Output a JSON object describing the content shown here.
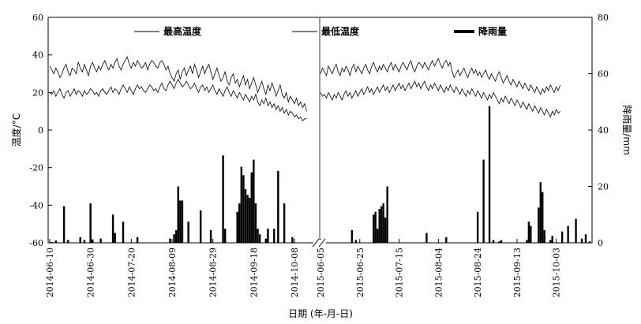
{
  "chart_data": {
    "type": "line",
    "xlabel": "日期 (年-月-日)",
    "ylabel": "温度/°C",
    "y2label": "降雨量/mm",
    "ylim": [
      -60,
      60
    ],
    "y2lim": [
      0,
      80
    ],
    "yticks": [
      60,
      40,
      20,
      0,
      -20,
      -40,
      -60
    ],
    "y2ticks": [
      80,
      60,
      40,
      20,
      0
    ],
    "axis_break": true,
    "legend_position": "top",
    "legend": [
      {
        "name": "最高温度",
        "style": "thin-line"
      },
      {
        "name": "最低温度",
        "style": "thin-line"
      },
      {
        "name": "降雨量",
        "style": "thick-bar"
      }
    ],
    "segments": [
      {
        "start": "2014-06-10",
        "end": "2014-10-20",
        "ticks": [
          "2014-06-10",
          "2014-06-30",
          "2014-07-20",
          "2014-08-09",
          "2014-08-29",
          "2014-09-18",
          "2014-10-08"
        ],
        "max_temp": [
          34,
          32,
          30,
          33,
          31,
          28,
          30,
          33,
          35,
          31,
          29,
          33,
          32,
          30,
          36,
          33,
          31,
          35,
          32,
          29,
          34,
          36,
          33,
          31,
          34,
          32,
          35,
          37,
          34,
          32,
          35,
          33,
          36,
          38,
          34,
          32,
          35,
          37,
          39,
          35,
          33,
          36,
          34,
          37,
          35,
          33,
          34,
          36,
          32,
          35,
          37,
          36,
          34,
          33,
          36,
          37,
          35,
          32,
          34,
          30,
          28,
          26,
          30,
          32,
          27,
          31,
          33,
          29,
          32,
          34,
          30,
          35,
          32,
          28,
          31,
          34,
          30,
          33,
          35,
          31,
          27,
          30,
          33,
          29,
          26,
          28,
          31,
          26,
          24,
          28,
          30,
          25,
          27,
          23,
          26,
          29,
          24,
          27,
          22,
          25,
          28,
          24,
          20,
          23,
          26,
          22,
          19,
          24,
          21,
          25,
          22,
          18,
          21,
          24,
          19,
          17,
          20,
          15,
          18,
          16,
          14,
          17,
          13,
          15,
          12,
          14,
          10
        ],
        "min_temp": [
          20,
          19,
          21,
          18,
          20,
          22,
          19,
          17,
          20,
          21,
          18,
          20,
          22,
          19,
          21,
          20,
          18,
          21,
          19,
          20,
          22,
          21,
          19,
          20,
          18,
          21,
          22,
          20,
          19,
          21,
          23,
          20,
          22,
          21,
          19,
          22,
          24,
          22,
          20,
          23,
          21,
          19,
          22,
          24,
          22,
          23,
          21,
          20,
          22,
          24,
          23,
          21,
          22,
          20,
          23,
          25,
          22,
          21,
          24,
          26,
          24,
          22,
          25,
          27,
          25,
          23,
          24,
          26,
          24,
          22,
          23,
          25,
          22,
          20,
          23,
          24,
          21,
          23,
          20,
          22,
          24,
          21,
          19,
          22,
          20,
          18,
          21,
          23,
          20,
          18,
          21,
          19,
          17,
          20,
          18,
          16,
          19,
          17,
          15,
          18,
          16,
          19,
          15,
          13,
          16,
          14,
          17,
          13,
          15,
          12,
          14,
          11,
          13,
          10,
          12,
          9,
          11,
          8,
          10,
          9,
          7,
          8,
          6,
          7,
          5,
          6,
          6
        ],
        "rain": [
          [
            1,
            0.3
          ],
          [
            3,
            0.8
          ],
          [
            7,
            13
          ],
          [
            9,
            1
          ],
          [
            15,
            2
          ],
          [
            17,
            1
          ],
          [
            20,
            14
          ],
          [
            21,
            1.2
          ],
          [
            25,
            1.5
          ],
          [
            31,
            10
          ],
          [
            32,
            3.5
          ],
          [
            36,
            7.5
          ],
          [
            43,
            2
          ],
          [
            59,
            1.5
          ],
          [
            61,
            3
          ],
          [
            62,
            4.5
          ],
          [
            63,
            20
          ],
          [
            64,
            15
          ],
          [
            65,
            15
          ],
          [
            68,
            7.5
          ],
          [
            74,
            11.5
          ],
          [
            79,
            4.5
          ],
          [
            85,
            31
          ],
          [
            86,
            5
          ],
          [
            92,
            11
          ],
          [
            93,
            14
          ],
          [
            94,
            27
          ],
          [
            95,
            24
          ],
          [
            96,
            19
          ],
          [
            97,
            17
          ],
          [
            98,
            16
          ],
          [
            99,
            25
          ],
          [
            100,
            29.5
          ],
          [
            101,
            14
          ],
          [
            102,
            5
          ],
          [
            103,
            3
          ],
          [
            106,
            1.5
          ],
          [
            107,
            5
          ],
          [
            110,
            5
          ],
          [
            112,
            25.5
          ],
          [
            115,
            14
          ],
          [
            119,
            2
          ]
        ]
      },
      {
        "start": "2015-06-05",
        "end": "2015-10-20",
        "ticks": [
          "2015-06-05",
          "2015-06-25",
          "2015-07-15",
          "2015-08-04",
          "2015-08-24",
          "2015-09-13",
          "2015-10-03"
        ],
        "max_temp": [
          30,
          33,
          31,
          29,
          34,
          32,
          30,
          33,
          35,
          31,
          29,
          33,
          31,
          34,
          32,
          29,
          33,
          35,
          31,
          34,
          32,
          30,
          33,
          35,
          32,
          30,
          34,
          36,
          33,
          31,
          34,
          32,
          35,
          33,
          31,
          34,
          36,
          32,
          35,
          33,
          31,
          34,
          36,
          34,
          32,
          35,
          37,
          33,
          31,
          34,
          36,
          35,
          33,
          36,
          34,
          32,
          35,
          37,
          34,
          36,
          38,
          35,
          33,
          36,
          37,
          34,
          36,
          31,
          28,
          30,
          32,
          29,
          31,
          33,
          30,
          28,
          31,
          33,
          30,
          32,
          29,
          31,
          28,
          30,
          32,
          29,
          27,
          30,
          28,
          26,
          29,
          31,
          28,
          25,
          27,
          29,
          26,
          24,
          27,
          25,
          23,
          26,
          24,
          22,
          25,
          23,
          21,
          24,
          22,
          20,
          23,
          21,
          19,
          22,
          20,
          23,
          21,
          24,
          22,
          20,
          23,
          21,
          24
        ],
        "min_temp": [
          20,
          18,
          19,
          17,
          20,
          18,
          16,
          19,
          17,
          20,
          18,
          16,
          19,
          21,
          18,
          20,
          17,
          19,
          21,
          18,
          20,
          22,
          19,
          21,
          23,
          20,
          22,
          19,
          21,
          23,
          20,
          22,
          24,
          21,
          23,
          20,
          22,
          24,
          21,
          23,
          25,
          22,
          24,
          21,
          23,
          25,
          22,
          24,
          26,
          23,
          25,
          22,
          24,
          26,
          23,
          21,
          24,
          22,
          25,
          23,
          21,
          24,
          22,
          20,
          23,
          21,
          24,
          22,
          20,
          23,
          21,
          19,
          22,
          20,
          18,
          21,
          19,
          22,
          20,
          18,
          21,
          19,
          17,
          20,
          18,
          16,
          19,
          17,
          20,
          18,
          16,
          14,
          17,
          15,
          18,
          16,
          14,
          17,
          15,
          13,
          16,
          14,
          12,
          15,
          13,
          11,
          14,
          12,
          10,
          13,
          11,
          9,
          12,
          10,
          8,
          11,
          9,
          7,
          10,
          8,
          11,
          9,
          10
        ],
        "rain": [
          [
            16,
            4.5
          ],
          [
            18,
            1
          ],
          [
            27,
            10
          ],
          [
            28,
            11
          ],
          [
            29,
            5
          ],
          [
            30,
            12
          ],
          [
            31,
            13
          ],
          [
            32,
            14
          ],
          [
            33,
            9
          ],
          [
            34,
            20
          ],
          [
            54,
            3.5
          ],
          [
            64,
            2
          ],
          [
            80,
            11
          ],
          [
            83,
            29.5
          ],
          [
            86,
            48.5
          ],
          [
            88,
            1
          ],
          [
            91,
            0.5
          ],
          [
            92,
            1
          ],
          [
            105,
            1
          ],
          [
            106,
            7.5
          ],
          [
            107,
            6
          ],
          [
            111,
            12.5
          ],
          [
            112,
            21.5
          ],
          [
            113,
            18
          ],
          [
            114,
            4.5
          ],
          [
            117,
            1
          ],
          [
            118,
            2.5
          ],
          [
            123,
            4
          ],
          [
            126,
            6
          ],
          [
            130,
            8.5
          ],
          [
            133,
            1.5
          ],
          [
            135,
            3
          ],
          [
            137,
            0.5
          ]
        ]
      }
    ]
  }
}
